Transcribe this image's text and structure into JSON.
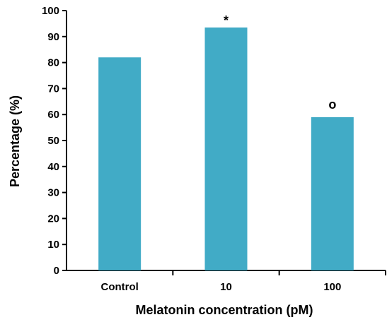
{
  "chart_data": {
    "type": "bar",
    "categories": [
      "Control",
      "10",
      "100"
    ],
    "values": [
      82,
      93.5,
      59
    ],
    "annotations": [
      "",
      "*",
      "o"
    ],
    "xlabel": "Melatonin concentration (pM)",
    "ylabel": "Percentage (%)",
    "ylim": [
      0,
      100
    ],
    "yticks": [
      0,
      10,
      20,
      30,
      40,
      50,
      60,
      70,
      80,
      90,
      100
    ],
    "bar_color": "#41abc6",
    "grid": false
  }
}
